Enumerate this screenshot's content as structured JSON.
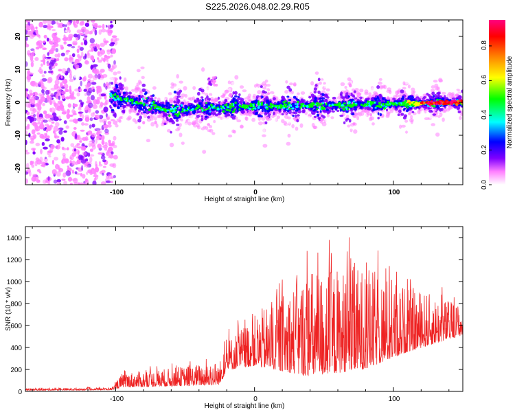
{
  "title": "S225.2026.048.02.29.R05",
  "chart_data": [
    {
      "type": "heatmap",
      "xlabel": "Height of straight line (km)",
      "ylabel": "Frequency (Hz)",
      "xlim": [
        -165,
        150
      ],
      "ylim": [
        -25,
        25
      ],
      "x_ticks": [
        "-100",
        "0",
        "100"
      ],
      "y_ticks": [
        "-20",
        "-10",
        "0",
        "10",
        "20"
      ],
      "colorbar": {
        "label": "Normalized spectral amplitude",
        "range": [
          0,
          0.95
        ],
        "ticks": [
          "0.0",
          "0.2",
          "0.4",
          "0.6",
          "0.8"
        ],
        "colors": [
          "#ffffff",
          "#ff80ff",
          "#8000ff",
          "#0000ff",
          "#00ffff",
          "#00ff00",
          "#ffff00",
          "#ff8000",
          "#ff0000",
          "#ff0080"
        ]
      },
      "features": {
        "noise_region_x": [
          -165,
          -103
        ],
        "signal_center_hz": 0,
        "signal_trend": [
          {
            "x": -100,
            "y": 1.5
          },
          {
            "x": -60,
            "y": -2.5
          },
          {
            "x": -20,
            "y": -1.5
          },
          {
            "x": 40,
            "y": -1.0
          },
          {
            "x": 100,
            "y": -0.5
          },
          {
            "x": 150,
            "y": 0.0
          }
        ]
      }
    },
    {
      "type": "line",
      "xlabel": "Height of straight line (km)",
      "ylabel": "SNR (10 * v/v)",
      "xlim": [
        -165,
        150
      ],
      "ylim": [
        0,
        1500
      ],
      "x_ticks": [
        "-100",
        "0",
        "100"
      ],
      "y_ticks": [
        "0",
        "200",
        "400",
        "600",
        "800",
        "1000",
        "1200",
        "1400"
      ],
      "color": "#ee2222",
      "envelope": [
        {
          "x": -165,
          "base": 15,
          "amp": 15
        },
        {
          "x": -103,
          "base": 20,
          "amp": 20
        },
        {
          "x": -95,
          "base": 80,
          "amp": 120
        },
        {
          "x": -60,
          "base": 100,
          "amp": 150
        },
        {
          "x": -25,
          "base": 130,
          "amp": 200
        },
        {
          "x": -20,
          "base": 280,
          "amp": 250
        },
        {
          "x": 0,
          "base": 380,
          "amp": 420
        },
        {
          "x": 40,
          "base": 450,
          "amp": 900
        },
        {
          "x": 80,
          "base": 500,
          "amp": 850
        },
        {
          "x": 110,
          "base": 550,
          "amp": 550
        },
        {
          "x": 150,
          "base": 600,
          "amp": 250
        }
      ]
    }
  ]
}
